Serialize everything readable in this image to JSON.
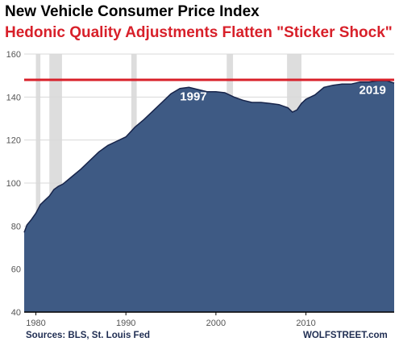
{
  "chart_data": {
    "type": "area",
    "title": "New Vehicle Consumer Price Index",
    "subtitle": "Hedonic Quality Adjustments Flatten \"Sticker Shock\"",
    "xlim": [
      1978.7,
      2019.8
    ],
    "ylim": [
      40,
      160
    ],
    "x_ticks": [
      1980,
      1990,
      2000,
      2010
    ],
    "x_tick_labels": [
      "1980",
      "1990",
      "2000",
      "2010"
    ],
    "y_ticks": [
      40,
      60,
      80,
      100,
      120,
      140,
      160
    ],
    "y_tick_labels": [
      "40",
      "60",
      "80",
      "100",
      "120",
      "140",
      "160"
    ],
    "grid": "horizontal",
    "series": [
      {
        "x": [
          1978.7,
          1979.0,
          1979.5,
          1980.0,
          1980.5,
          1981.0,
          1981.5,
          1982.0,
          1982.5,
          1983.0,
          1984.0,
          1985.0,
          1986.0,
          1987.0,
          1988.0,
          1989.0,
          1990.0,
          1991.0,
          1992.0,
          1993.0,
          1994.0,
          1995.0,
          1996.0,
          1997.0,
          1998.0,
          1999.0,
          2000.0,
          2001.0,
          2002.0,
          2003.0,
          2004.0,
          2005.0,
          2006.0,
          2007.0,
          2008.0,
          2008.5,
          2009.0,
          2009.5,
          2010.0,
          2011.0,
          2012.0,
          2013.0,
          2014.0,
          2015.0,
          2016.0,
          2017.0,
          2018.0,
          2019.0,
          2019.8
        ],
        "values": [
          77,
          80.5,
          83,
          86,
          90,
          92,
          94,
          97,
          98.5,
          99.5,
          103,
          106.5,
          110.5,
          114.5,
          117.5,
          119.5,
          121.5,
          126,
          129.5,
          133.5,
          137.5,
          141.5,
          144,
          144.5,
          143.5,
          142.5,
          142.5,
          142,
          140,
          138.5,
          137.5,
          137.5,
          137,
          136.5,
          135,
          133,
          134,
          137,
          139,
          141,
          144.5,
          145.5,
          146,
          146,
          147,
          147,
          147.5,
          147.5,
          146.5
        ]
      }
    ],
    "reference_line": {
      "value": 148
    },
    "recession_bands": [
      [
        1980.0,
        1980.5
      ],
      [
        1981.5,
        1982.9
      ],
      [
        1990.6,
        1991.2
      ],
      [
        2001.2,
        2001.9
      ],
      [
        2007.9,
        2009.5
      ]
    ],
    "annotations": [
      {
        "text": "1997",
        "x": 1997.5,
        "y": 138.5
      },
      {
        "text": "2019",
        "x": 2017.4,
        "y": 141.5
      }
    ],
    "colors": {
      "area_fill": "#3e5a84",
      "area_line": "#17244a",
      "reference_line": "#d8202a",
      "recession": "#dddddd",
      "grid": "#d8d8d8"
    }
  },
  "footer": {
    "source": "Sources: BLS, St. Louis Fed",
    "brand": "WOLFSTREET.com"
  }
}
